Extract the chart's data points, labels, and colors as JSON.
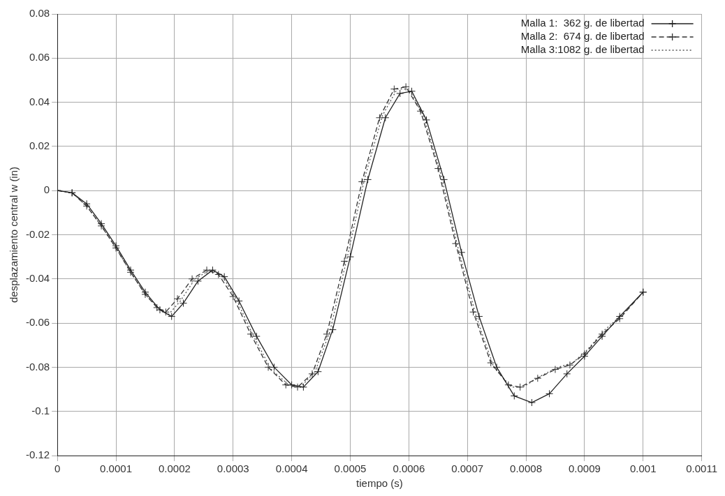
{
  "chart_data": {
    "type": "line",
    "xlabel": "tiempo (s)",
    "ylabel": "desplazamiento central w (in)",
    "xlim": [
      0,
      0.0011
    ],
    "ylim": [
      -0.12,
      0.08
    ],
    "xticks": [
      0,
      0.0001,
      0.0002,
      0.0003,
      0.0004,
      0.0005,
      0.0006,
      0.0007,
      0.0008,
      0.0009,
      0.001,
      0.0011
    ],
    "yticks": [
      -0.12,
      -0.1,
      -0.08,
      -0.06,
      -0.04,
      -0.02,
      0,
      0.02,
      0.04,
      0.06,
      0.08
    ],
    "grid": true,
    "legend": "top right",
    "series": [
      {
        "name": "Malla 1:  362 g. de libertad",
        "color": "#222222",
        "marker": "cross",
        "line_style": "solid",
        "x": [
          0,
          2.5e-05,
          5e-05,
          7.5e-05,
          0.0001,
          0.000125,
          0.00015,
          0.000175,
          0.000195,
          0.000215,
          0.00024,
          0.000265,
          0.000285,
          0.00031,
          0.00034,
          0.00037,
          0.0004,
          0.00042,
          0.000445,
          0.00047,
          0.0005,
          0.00053,
          0.00056,
          0.000585,
          0.000605,
          0.00063,
          0.00066,
          0.00069,
          0.00072,
          0.00075,
          0.00078,
          0.00081,
          0.00084,
          0.00087,
          0.0009,
          0.00093,
          0.00096,
          0.001
        ],
        "values": [
          0,
          -0.001,
          -0.006,
          -0.015,
          -0.025,
          -0.036,
          -0.046,
          -0.054,
          -0.057,
          -0.051,
          -0.041,
          -0.036,
          -0.039,
          -0.05,
          -0.066,
          -0.08,
          -0.088,
          -0.089,
          -0.082,
          -0.063,
          -0.03,
          0.005,
          0.033,
          0.044,
          0.045,
          0.032,
          0.005,
          -0.028,
          -0.057,
          -0.08,
          -0.093,
          -0.096,
          -0.092,
          -0.083,
          -0.075,
          -0.066,
          -0.057,
          -0.046
        ]
      },
      {
        "name": "Malla 2:  674 g. de libertad",
        "color": "#333333",
        "marker": "cross",
        "line_style": "dashed",
        "x": [
          0,
          2.5e-05,
          5e-05,
          7.5e-05,
          0.0001,
          0.000125,
          0.00015,
          0.00017,
          0.000185,
          0.000205,
          0.00023,
          0.000255,
          0.000275,
          0.0003,
          0.00033,
          0.00036,
          0.00039,
          0.00041,
          0.000435,
          0.00046,
          0.00049,
          0.00052,
          0.00055,
          0.000575,
          0.000595,
          0.00062,
          0.00065,
          0.00068,
          0.00071,
          0.00074,
          0.00077,
          0.00079,
          0.00082,
          0.00085,
          0.000875,
          0.0009,
          0.00093,
          0.00096,
          0.001
        ],
        "values": [
          0,
          -0.001,
          -0.007,
          -0.016,
          -0.026,
          -0.037,
          -0.047,
          -0.053,
          -0.055,
          -0.049,
          -0.04,
          -0.036,
          -0.038,
          -0.048,
          -0.065,
          -0.08,
          -0.088,
          -0.089,
          -0.083,
          -0.065,
          -0.032,
          0.004,
          0.033,
          0.046,
          0.047,
          0.036,
          0.01,
          -0.024,
          -0.055,
          -0.078,
          -0.088,
          -0.089,
          -0.085,
          -0.081,
          -0.079,
          -0.074,
          -0.065,
          -0.058,
          -0.046
        ]
      },
      {
        "name": "Malla 3:1082 g. de libertad",
        "color": "#555555",
        "marker": "none",
        "line_style": "dotted",
        "x": [
          0,
          2.5e-05,
          5e-05,
          7.5e-05,
          0.0001,
          0.000125,
          0.00015,
          0.000175,
          0.00019,
          0.00021,
          0.000235,
          0.00026,
          0.00028,
          0.000305,
          0.000335,
          0.000365,
          0.000395,
          0.000415,
          0.00044,
          0.000465,
          0.000495,
          0.000525,
          0.000555,
          0.00058,
          0.0006,
          0.000625,
          0.000655,
          0.000685,
          0.000715,
          0.000745,
          0.000775,
          0.000795,
          0.000825,
          0.000855,
          0.00088,
          0.000905,
          0.000935,
          0.000965,
          0.001
        ],
        "values": [
          0,
          -0.001,
          -0.007,
          -0.016,
          -0.026,
          -0.037,
          -0.047,
          -0.054,
          -0.056,
          -0.05,
          -0.04,
          -0.036,
          -0.038,
          -0.049,
          -0.066,
          -0.081,
          -0.088,
          -0.089,
          -0.082,
          -0.064,
          -0.03,
          0.006,
          0.034,
          0.046,
          0.046,
          0.034,
          0.007,
          -0.027,
          -0.057,
          -0.08,
          -0.089,
          -0.089,
          -0.084,
          -0.08,
          -0.078,
          -0.072,
          -0.063,
          -0.056,
          -0.046
        ]
      }
    ]
  }
}
